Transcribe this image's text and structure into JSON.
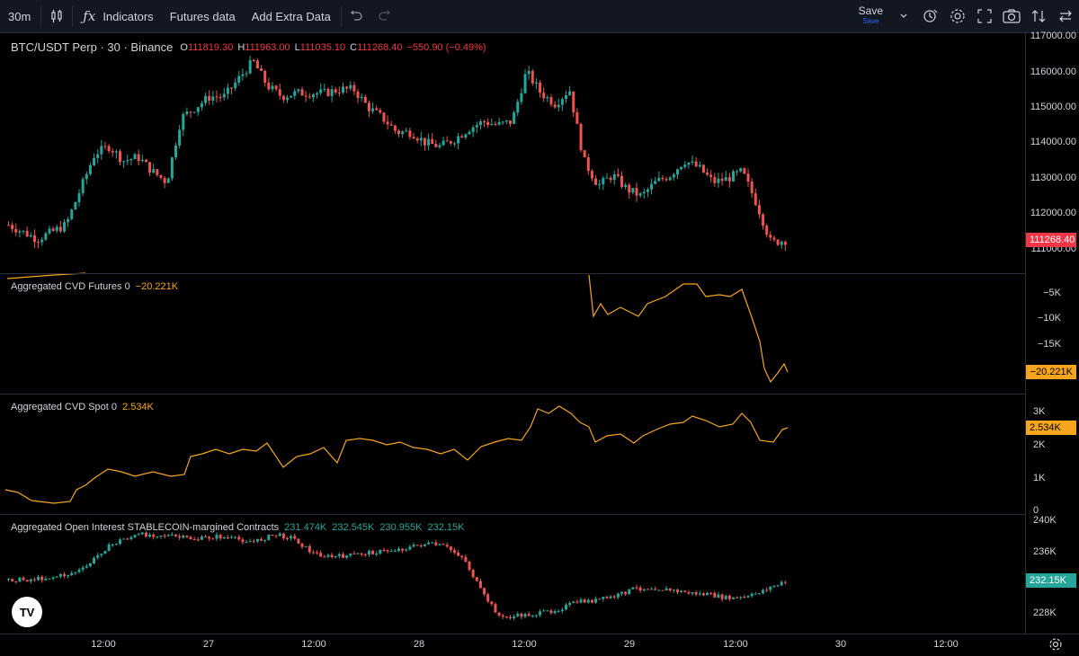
{
  "toolbar": {
    "interval": "30m",
    "indicators_label": "Indicators",
    "futures_label": "Futures data",
    "extra_label": "Add Extra Data",
    "save_label": "Save",
    "save_sub": "Save"
  },
  "main": {
    "symbol": "BTC/USDT Perp · 30 · Binance",
    "o_label": "O",
    "o_value": "111819.30",
    "h_label": "H",
    "h_value": "111963.00",
    "l_label": "L",
    "l_value": "111035.10",
    "c_label": "C",
    "c_value": "111268.40",
    "change": "−550.90 (−0.49%)",
    "last_price": "111268.40",
    "axis": [
      "117000.00",
      "116000.00",
      "115000.00",
      "114000.00",
      "113000.00",
      "112000.00",
      "111000.00"
    ]
  },
  "cvd_futures": {
    "title": "Aggregated CVD Futures 0",
    "value": "−20.221K",
    "axis": [
      "−5K",
      "−10K",
      "−15K"
    ],
    "tag": "−20.221K"
  },
  "cvd_spot": {
    "title": "Aggregated CVD Spot 0",
    "value": "2.534K",
    "axis": [
      "3K",
      "2K",
      "1K",
      "0"
    ],
    "tag": "2.534K"
  },
  "oi": {
    "title": "Aggregated Open Interest STABLECOIN-margined Contracts",
    "v1": "231.474K",
    "v2": "232.545K",
    "v3": "230.955K",
    "v4": "232.15K",
    "axis": [
      "240K",
      "236K",
      "228K"
    ],
    "tag": "232.15K"
  },
  "time_axis": [
    "12:00",
    "27",
    "12:00",
    "28",
    "12:00",
    "29",
    "12:00",
    "30",
    "12:00"
  ],
  "logo_text": "TV",
  "colors": {
    "up": "#26a69a",
    "down": "#ef5350",
    "orange": "#f7a51c",
    "red_tag": "#f23645"
  },
  "chart_data": [
    {
      "type": "candlestick",
      "title": "BTC/USDT Perp · 30 · Binance",
      "ylim": [
        110800,
        117000
      ],
      "close_path": [
        111700,
        111500,
        111300,
        111500,
        111700,
        112700,
        113700,
        113900,
        113500,
        113600,
        113200,
        112900,
        114700,
        115000,
        115300,
        115300,
        115800,
        116300,
        115600,
        115300,
        115400,
        115400,
        115400,
        115500,
        115500,
        115000,
        114700,
        114300,
        114300,
        114000,
        113900,
        114100,
        114400,
        114600,
        114500,
        114600,
        116000,
        115400,
        115100,
        115500,
        113500,
        112800,
        113100,
        112700,
        112500,
        112900,
        113100,
        113500,
        113300,
        112900,
        113000,
        113200,
        112300,
        111200,
        111268
      ]
    },
    {
      "type": "line",
      "title": "Aggregated CVD Futures 0",
      "last": -20221
    },
    {
      "type": "line",
      "title": "Aggregated CVD Spot 0",
      "last": 2534
    },
    {
      "type": "candlestick",
      "title": "Aggregated Open Interest STABLECOIN-margined Contracts",
      "last": 232150
    }
  ]
}
